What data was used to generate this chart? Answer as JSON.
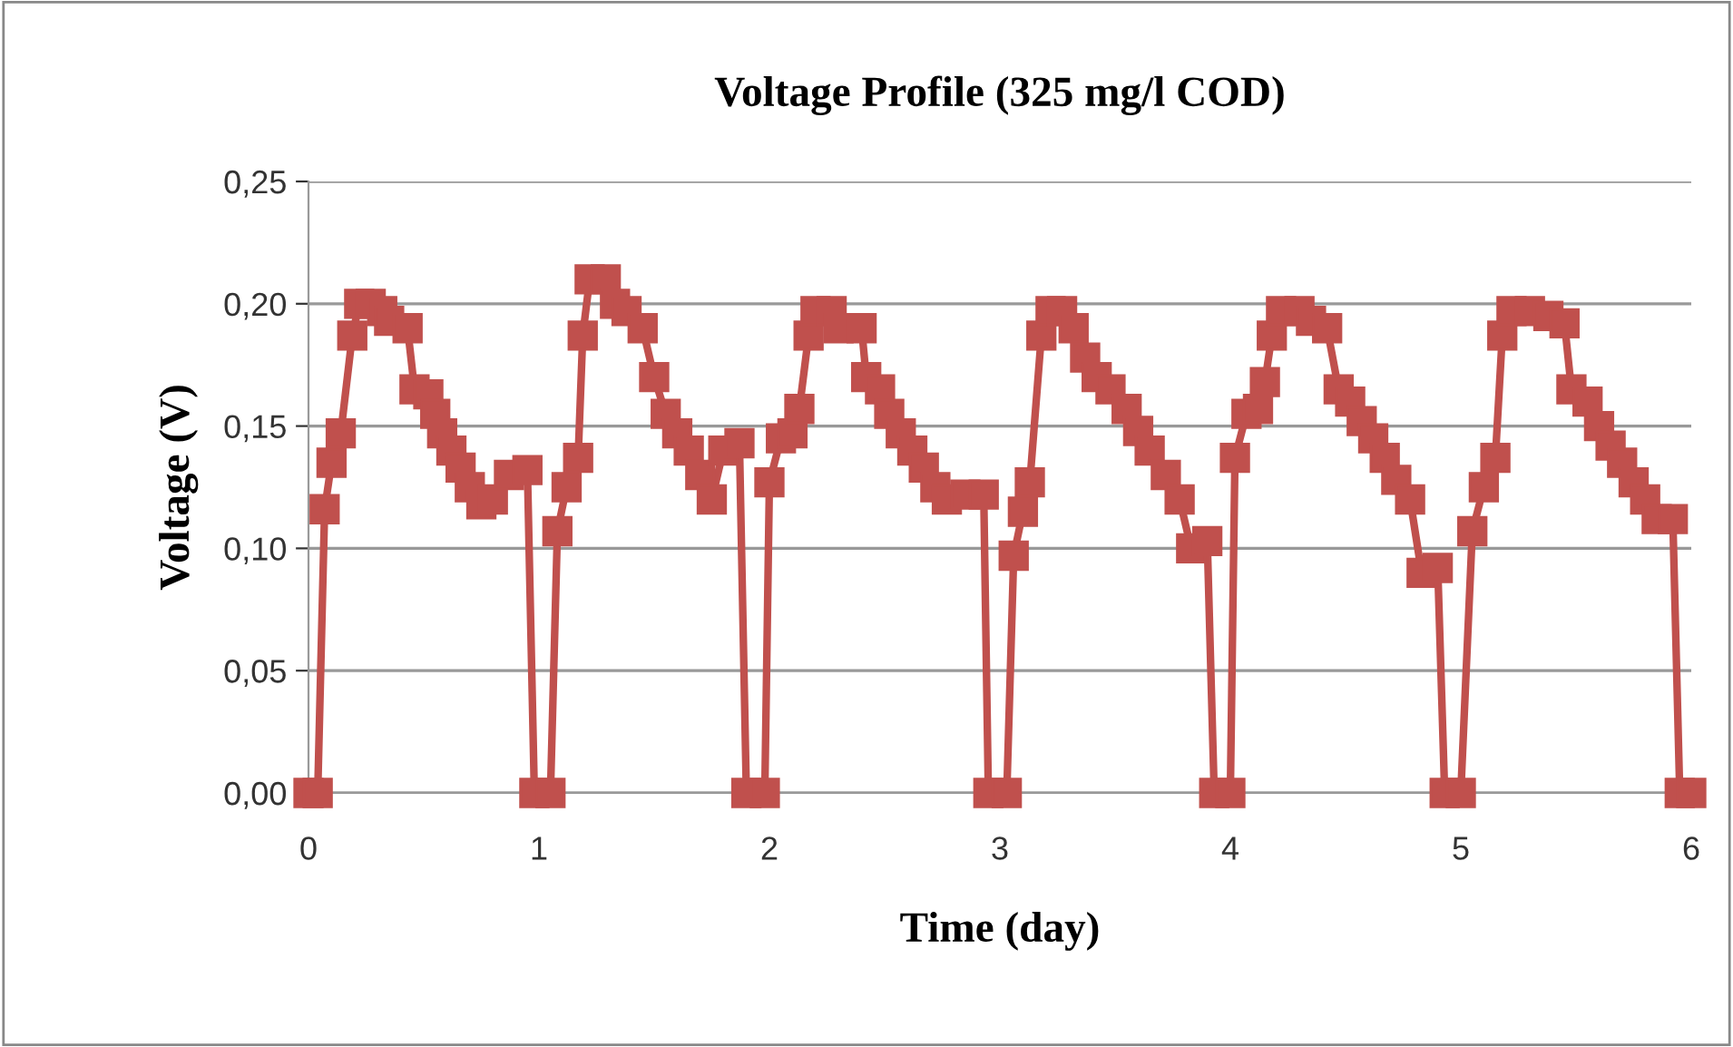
{
  "chart_data": {
    "type": "line",
    "title": "Voltage Profile (325 mg/l COD)",
    "xlabel": "Time (day)",
    "ylabel": "Voltage (V)",
    "xlim": [
      0,
      6
    ],
    "xticks": [
      0,
      1,
      2,
      3,
      4,
      5,
      6
    ],
    "ylim": [
      0,
      0.25
    ],
    "yticks": [
      {
        "value": 0,
        "label": "0,00"
      },
      {
        "value": 0.05,
        "label": "0,05"
      },
      {
        "value": 0.1,
        "label": "0,10"
      },
      {
        "value": 0.15,
        "label": "0,15"
      },
      {
        "value": 0.2,
        "label": "0,20"
      },
      {
        "value": 0.25,
        "label": "0,25"
      }
    ],
    "grid": "y",
    "legend": false,
    "marker": "square",
    "line_style": "solid",
    "series": [
      {
        "color": "#c0504d",
        "x": [
          0,
          0.04,
          0.07,
          0.1,
          0.14,
          0.19,
          0.22,
          0.27,
          0.32,
          0.35,
          0.43,
          0.46,
          0.52,
          0.55,
          0.58,
          0.62,
          0.66,
          0.7,
          0.75,
          0.8,
          0.87,
          0.95,
          0.98,
          1.05,
          1.08,
          1.12,
          1.17,
          1.19,
          1.22,
          1.29,
          1.33,
          1.38,
          1.45,
          1.5,
          1.55,
          1.6,
          1.65,
          1.7,
          1.75,
          1.8,
          1.87,
          1.9,
          1.98,
          2.0,
          2.05,
          2.1,
          2.13,
          2.17,
          2.2,
          2.27,
          2.3,
          2.4,
          2.42,
          2.48,
          2.52,
          2.57,
          2.62,
          2.67,
          2.72,
          2.77,
          2.85,
          2.93,
          2.95,
          3.03,
          3.06,
          3.1,
          3.13,
          3.18,
          3.22,
          3.27,
          3.32,
          3.37,
          3.42,
          3.48,
          3.55,
          3.6,
          3.65,
          3.72,
          3.78,
          3.83,
          3.9,
          3.93,
          4.0,
          4.02,
          4.07,
          4.12,
          4.15,
          4.18,
          4.22,
          4.3,
          4.35,
          4.42,
          4.47,
          4.52,
          4.57,
          4.62,
          4.67,
          4.72,
          4.78,
          4.83,
          4.9,
          4.93,
          5.0,
          5.05,
          5.1,
          5.15,
          5.18,
          5.22,
          5.3,
          5.38,
          5.45,
          5.48,
          5.55,
          5.6,
          5.65,
          5.7,
          5.75,
          5.8,
          5.85,
          5.92,
          5.95,
          6.0
        ],
        "values": [
          0,
          0,
          0.116,
          0.135,
          0.147,
          0.187,
          0.2,
          0.2,
          0.197,
          0.193,
          0.19,
          0.165,
          0.163,
          0.155,
          0.147,
          0.14,
          0.133,
          0.125,
          0.118,
          0.12,
          0.13,
          0.132,
          0,
          0,
          0.107,
          0.125,
          0.137,
          0.187,
          0.21,
          0.21,
          0.2,
          0.197,
          0.19,
          0.17,
          0.155,
          0.147,
          0.14,
          0.13,
          0.12,
          0.14,
          0.143,
          0,
          0,
          0.127,
          0.145,
          0.147,
          0.157,
          0.187,
          0.197,
          0.197,
          0.19,
          0.19,
          0.17,
          0.165,
          0.155,
          0.147,
          0.14,
          0.133,
          0.125,
          0.12,
          0.122,
          0.122,
          0,
          0,
          0.097,
          0.115,
          0.127,
          0.187,
          0.197,
          0.197,
          0.19,
          0.178,
          0.17,
          0.165,
          0.157,
          0.148,
          0.14,
          0.13,
          0.12,
          0.1,
          0.103,
          0,
          0,
          0.137,
          0.155,
          0.157,
          0.168,
          0.187,
          0.197,
          0.197,
          0.193,
          0.19,
          0.165,
          0.16,
          0.152,
          0.145,
          0.137,
          0.128,
          0.12,
          0.09,
          0.092,
          0,
          0,
          0.107,
          0.125,
          0.137,
          0.187,
          0.197,
          0.197,
          0.195,
          0.192,
          0.165,
          0.16,
          0.15,
          0.142,
          0.135,
          0.127,
          0.12,
          0.112,
          0.112,
          0,
          0
        ]
      }
    ]
  }
}
